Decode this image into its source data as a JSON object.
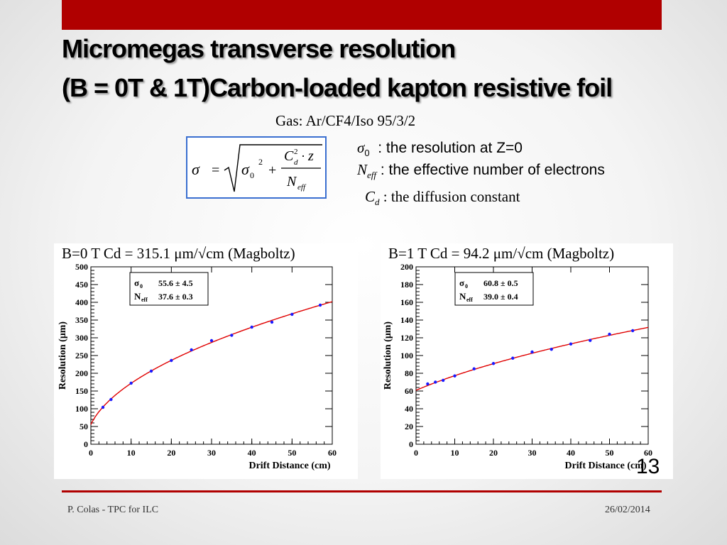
{
  "title_line1": "Micromegas transverse resolution",
  "title_line2": "(B = 0T & 1T)Carbon-loaded kapton resistive foil",
  "gas": "Gas:  Ar/CF4/Iso   95/3/2",
  "definitions": {
    "sigma0": ": the resolution at Z=0",
    "neff": ": the effective number of electrons",
    "cd": ": the diffusion constant"
  },
  "page_number": "13",
  "footer_left": "P. Colas - TPC for ILC",
  "footer_right": "26/02/2014",
  "colors": {
    "accent": "#b00000",
    "fit": "#e00000",
    "points": "#1a1aff",
    "formula_border": "#3a6fd0"
  },
  "chart_data": [
    {
      "type": "scatter",
      "label": "B=0 T   Cd = 315.1 μm/√cm (Magboltz)",
      "xlabel": "Drift Distance (cm)",
      "ylabel": "Resolution (μm)",
      "xlim": [
        0,
        60
      ],
      "ylim": [
        0,
        500
      ],
      "xticks": [
        0,
        10,
        20,
        30,
        40,
        50,
        60
      ],
      "yticks": [
        0,
        50,
        100,
        150,
        200,
        250,
        300,
        350,
        400,
        450,
        500
      ],
      "legend": {
        "sigma0": "55.6 ± 4.5",
        "neff": "37.6 ± 0.3"
      },
      "fit": {
        "sigma0": 55.6,
        "cd": 315.1,
        "neff": 37.6
      },
      "x": [
        3,
        5,
        10,
        15,
        20,
        25,
        30,
        35,
        40,
        45,
        50,
        57
      ],
      "y": [
        104,
        126,
        172,
        206,
        236,
        266,
        292,
        307,
        330,
        344,
        366,
        392
      ]
    },
    {
      "type": "scatter",
      "label": "B=1 T   Cd = 94.2 μm/√cm (Magboltz)",
      "xlabel": "Drift Distance (cm)",
      "ylabel": "Resolution (μm)",
      "xlim": [
        0,
        60
      ],
      "ylim": [
        0,
        200
      ],
      "xticks": [
        0,
        10,
        20,
        30,
        40,
        50,
        60
      ],
      "yticks": [
        0,
        20,
        40,
        60,
        80,
        100,
        120,
        140,
        160,
        180,
        200
      ],
      "legend": {
        "sigma0": "60.8 ± 0.5",
        "neff": "39.0 ± 0.4"
      },
      "fit": {
        "sigma0": 60.8,
        "cd": 94.2,
        "neff": 39.0
      },
      "x": [
        3,
        5,
        7,
        10,
        15,
        20,
        25,
        30,
        35,
        40,
        45,
        50,
        56
      ],
      "y": [
        68,
        70,
        72,
        77,
        85,
        91,
        97,
        104,
        107,
        113,
        117,
        124,
        128
      ]
    }
  ]
}
